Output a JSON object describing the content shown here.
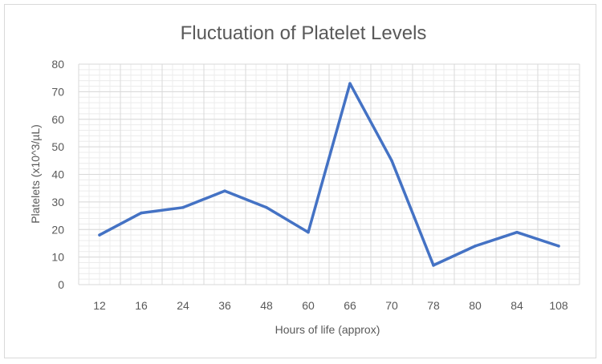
{
  "chart_data": {
    "type": "line",
    "title": "Fluctuation of Platelet Levels",
    "xlabel": "Hours of life (approx)",
    "ylabel": "Platelets (x10^3/µL)",
    "categories": [
      "12",
      "16",
      "24",
      "36",
      "48",
      "60",
      "66",
      "70",
      "78",
      "80",
      "84",
      "108"
    ],
    "series": [
      {
        "values": [
          18,
          26,
          28,
          34,
          28,
          19,
          73,
          45,
          7,
          14,
          19,
          14
        ]
      }
    ],
    "ylim": [
      0,
      80
    ],
    "yticks": [
      0,
      10,
      20,
      30,
      40,
      50,
      60,
      70,
      80
    ],
    "grid": true,
    "minor_grid": true,
    "line_color": "#4472c4",
    "grid_color": "#d9d9d9"
  }
}
